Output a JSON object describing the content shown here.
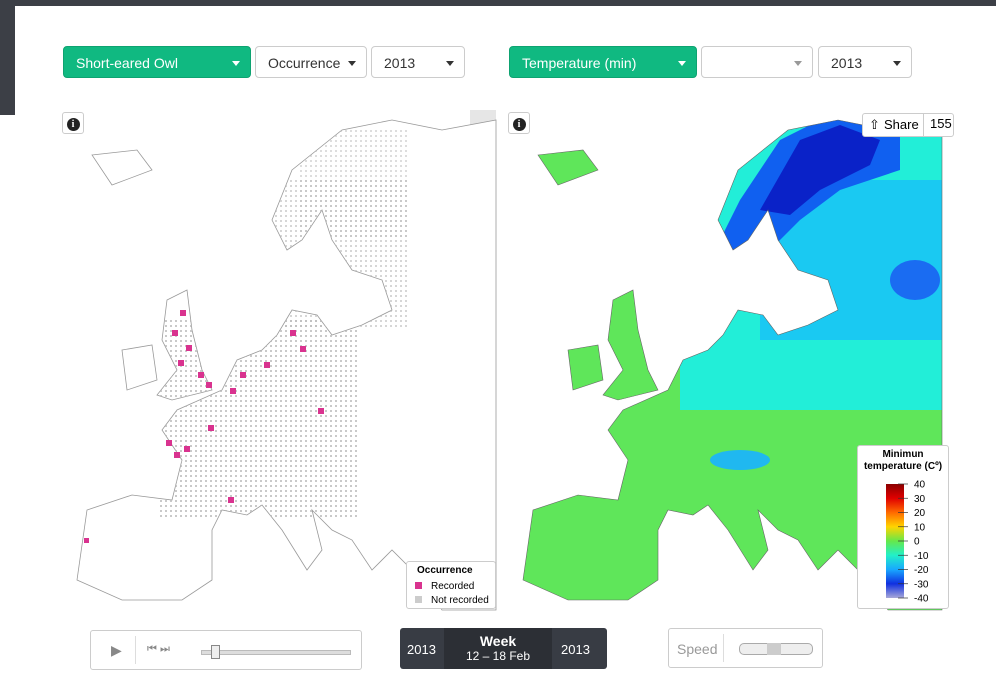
{
  "controls": {
    "species": "Short-eared Owl",
    "layer": "Occurrence",
    "year_left": "2013",
    "variable": "Temperature (min)",
    "year_right": "2013"
  },
  "share": {
    "label": "Share",
    "count": 155
  },
  "occurrence_legend": {
    "title": "Occurrence",
    "items": [
      "Recorded",
      "Not recorded"
    ],
    "colors": [
      "#d9338f",
      "#cccccc"
    ]
  },
  "temperature_legend": {
    "title": [
      "Minimun",
      "temperature (Cº)"
    ],
    "ticks": [
      40,
      30,
      20,
      10,
      0,
      -10,
      -20,
      -30,
      -40
    ],
    "colors": [
      "#8b0000",
      "#e00000",
      "#ff6a00",
      "#ffd400",
      "#66e84a",
      "#22f0c8",
      "#18a8ff",
      "#1030e0",
      "#a8a8d8"
    ]
  },
  "timeline": {
    "start": "2013",
    "label": "Week",
    "range": "12 – 18 Feb",
    "end": "2013"
  },
  "speed": "Speed"
}
